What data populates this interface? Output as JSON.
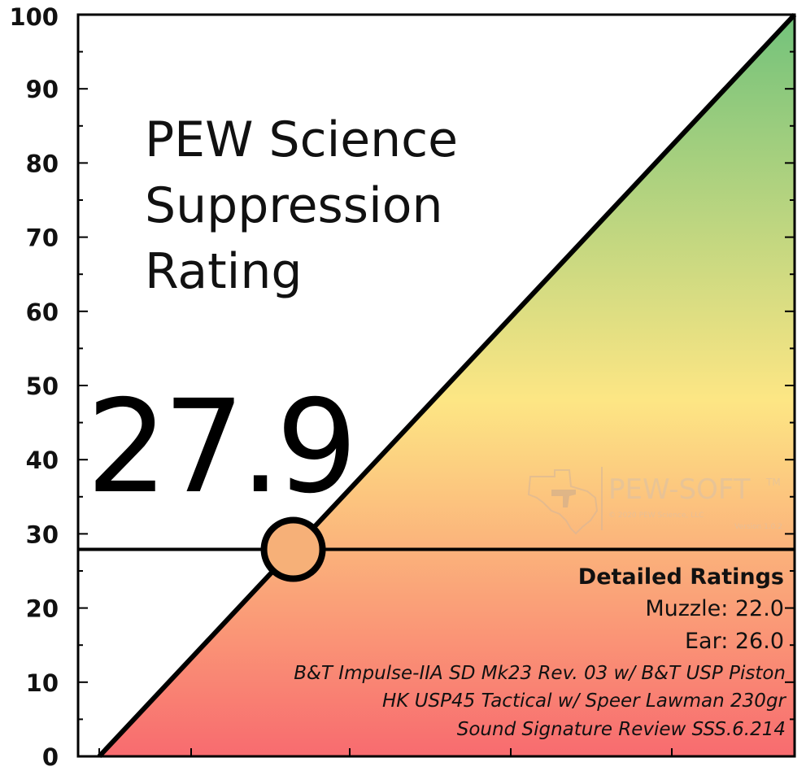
{
  "chart_data": {
    "type": "area",
    "title": [
      "PEW Science",
      "Suppression",
      "Rating"
    ],
    "rating": 27.9,
    "rating_label": "27.9",
    "ylim": [
      0,
      100
    ],
    "xlim": [
      0,
      100
    ],
    "y_ticks": [
      0,
      10,
      20,
      30,
      40,
      50,
      60,
      70,
      80,
      90,
      100
    ],
    "y_tick_labels": [
      "0",
      "10",
      "20",
      "30",
      "40",
      "50",
      "60",
      "70",
      "80",
      "90",
      "100"
    ],
    "diagonal": {
      "x": [
        0,
        100
      ],
      "y": [
        0,
        100
      ]
    },
    "marker": {
      "x": 27.9,
      "y": 27.9,
      "color": "#f6b078"
    },
    "gradient": {
      "top": "#72c27b",
      "middle": "#fde684",
      "bottom": "#f86b6f"
    },
    "grid": false,
    "xlabel": "",
    "ylabel": ""
  },
  "details": {
    "heading": "Detailed Ratings",
    "lines": [
      "Muzzle: 22.0",
      "Ear: 26.0"
    ],
    "italic_lines": [
      "B&T Impulse-IIA SD Mk23 Rev. 03 w/ B&T USP Piston",
      "HK USP45 Tactical w/ Speer Lawman 230gr",
      "Sound Signature Review SSS.6.214"
    ]
  },
  "watermark": {
    "brand": "PEW-SOFT",
    "tm": "TM",
    "copyright": "© 2020 PEW Science, LLC",
    "version": "Version 1.0.2",
    "icon": "texas-pistol-icon"
  }
}
